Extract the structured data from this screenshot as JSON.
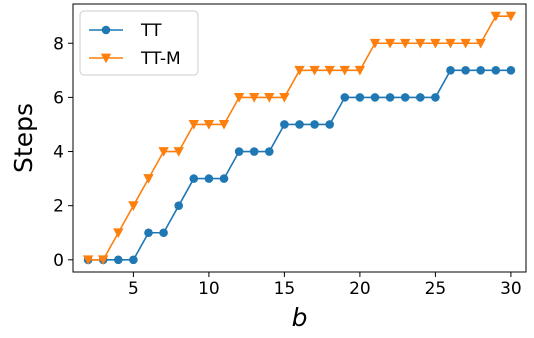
{
  "chart_data": {
    "type": "line",
    "title": "",
    "xlabel": "b",
    "ylabel": "Steps",
    "xlim": [
      1,
      31
    ],
    "ylim": [
      -0.45,
      9.45
    ],
    "xticks": [
      5,
      10,
      15,
      20,
      25,
      30
    ],
    "yticks": [
      0,
      2,
      4,
      6,
      8
    ],
    "grid": false,
    "legend_position": "top-left",
    "x": [
      2,
      3,
      4,
      5,
      6,
      7,
      8,
      9,
      10,
      11,
      12,
      13,
      14,
      15,
      16,
      17,
      18,
      19,
      20,
      21,
      22,
      23,
      24,
      25,
      26,
      27,
      28,
      29,
      30
    ],
    "series": [
      {
        "name": "TT",
        "color": "#1f77b4",
        "marker": "circle",
        "values": [
          0,
          0,
          0,
          0,
          1,
          1,
          2,
          3,
          3,
          3,
          4,
          4,
          4,
          5,
          5,
          5,
          5,
          6,
          6,
          6,
          6,
          6,
          6,
          6,
          7,
          7,
          7,
          7,
          7
        ]
      },
      {
        "name": "TT-M",
        "color": "#ff7f0e",
        "marker": "triangle-down",
        "values": [
          0,
          0,
          1,
          2,
          3,
          4,
          4,
          5,
          5,
          5,
          6,
          6,
          6,
          6,
          7,
          7,
          7,
          7,
          7,
          8,
          8,
          8,
          8,
          8,
          8,
          8,
          8,
          9,
          9
        ]
      }
    ]
  }
}
